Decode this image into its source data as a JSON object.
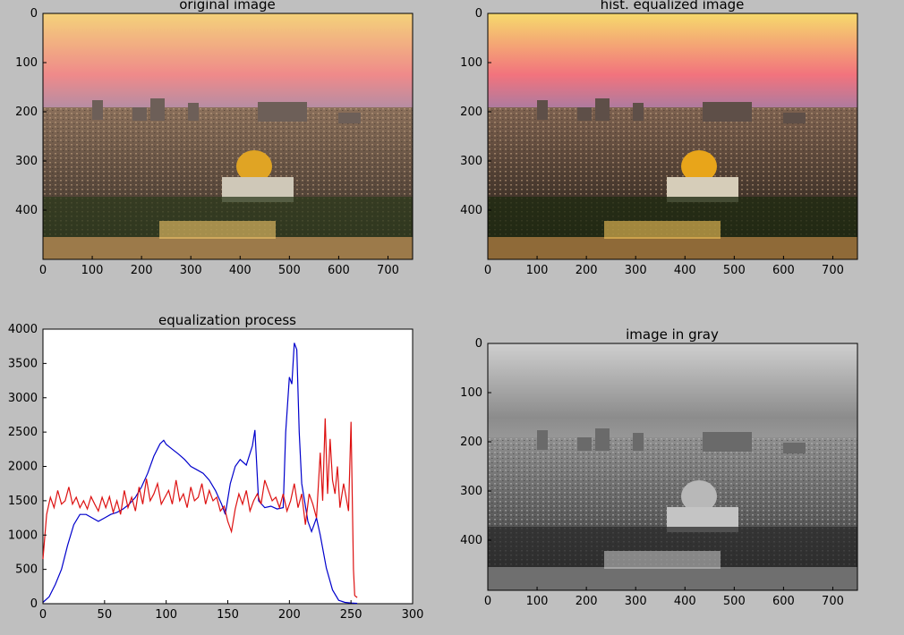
{
  "figure": {
    "background": "#bfbfbf",
    "colors": {
      "blue": "#0000cc",
      "red": "#dd1111",
      "axes": "#000000"
    }
  },
  "panels": {
    "original": {
      "title": "original image",
      "image_description": "Jerusalem skyline at dusk with the golden Dome of the Rock, colorful sunset sky",
      "x_ticks": [
        "0",
        "100",
        "200",
        "300",
        "400",
        "500",
        "600",
        "700"
      ],
      "y_ticks": [
        "0",
        "100",
        "200",
        "300",
        "400"
      ]
    },
    "equalized": {
      "title": "hist. equalized image",
      "image_description": "same scene after histogram equalization, higher contrast",
      "x_ticks": [
        "0",
        "100",
        "200",
        "300",
        "400",
        "500",
        "600",
        "700"
      ],
      "y_ticks": [
        "0",
        "100",
        "200",
        "300",
        "400"
      ]
    },
    "gray": {
      "title": "image in gray",
      "image_description": "grayscale version of the Jerusalem skyline",
      "x_ticks": [
        "0",
        "100",
        "200",
        "300",
        "400",
        "500",
        "600",
        "700"
      ],
      "y_ticks": [
        "0",
        "100",
        "200",
        "300",
        "400"
      ]
    }
  },
  "chart_data": {
    "type": "line",
    "title": "equalization process",
    "xlim": [
      0,
      300
    ],
    "ylim": [
      0,
      4000
    ],
    "x_ticks": [
      0,
      50,
      100,
      150,
      200,
      250,
      300
    ],
    "y_ticks": [
      0,
      500,
      1000,
      1500,
      2000,
      2500,
      3000,
      3500,
      4000
    ],
    "grid": false,
    "series": [
      {
        "color": "#0000cc",
        "points": [
          [
            0,
            20
          ],
          [
            5,
            100
          ],
          [
            10,
            280
          ],
          [
            15,
            500
          ],
          [
            20,
            850
          ],
          [
            25,
            1150
          ],
          [
            30,
            1300
          ],
          [
            35,
            1300
          ],
          [
            40,
            1250
          ],
          [
            45,
            1200
          ],
          [
            50,
            1250
          ],
          [
            55,
            1300
          ],
          [
            60,
            1330
          ],
          [
            65,
            1380
          ],
          [
            70,
            1450
          ],
          [
            75,
            1550
          ],
          [
            80,
            1700
          ],
          [
            85,
            1900
          ],
          [
            90,
            2150
          ],
          [
            95,
            2330
          ],
          [
            98,
            2380
          ],
          [
            100,
            2320
          ],
          [
            105,
            2250
          ],
          [
            110,
            2180
          ],
          [
            115,
            2100
          ],
          [
            120,
            2000
          ],
          [
            125,
            1950
          ],
          [
            130,
            1900
          ],
          [
            135,
            1800
          ],
          [
            140,
            1650
          ],
          [
            145,
            1450
          ],
          [
            148,
            1300
          ],
          [
            152,
            1750
          ],
          [
            156,
            2000
          ],
          [
            160,
            2100
          ],
          [
            165,
            2020
          ],
          [
            170,
            2300
          ],
          [
            172,
            2530
          ],
          [
            175,
            1500
          ],
          [
            180,
            1400
          ],
          [
            185,
            1420
          ],
          [
            190,
            1380
          ],
          [
            195,
            1400
          ],
          [
            197,
            2500
          ],
          [
            200,
            3300
          ],
          [
            202,
            3200
          ],
          [
            204,
            3800
          ],
          [
            206,
            3700
          ],
          [
            208,
            2500
          ],
          [
            210,
            1750
          ],
          [
            215,
            1200
          ],
          [
            218,
            1050
          ],
          [
            222,
            1250
          ],
          [
            225,
            1000
          ],
          [
            230,
            520
          ],
          [
            235,
            200
          ],
          [
            240,
            50
          ],
          [
            245,
            20
          ],
          [
            250,
            10
          ],
          [
            255,
            5
          ]
        ]
      },
      {
        "color": "#dd1111",
        "points": [
          [
            0,
            650
          ],
          [
            3,
            1300
          ],
          [
            6,
            1550
          ],
          [
            9,
            1400
          ],
          [
            12,
            1650
          ],
          [
            15,
            1450
          ],
          [
            18,
            1500
          ],
          [
            21,
            1700
          ],
          [
            24,
            1450
          ],
          [
            27,
            1550
          ],
          [
            30,
            1400
          ],
          [
            33,
            1500
          ],
          [
            36,
            1380
          ],
          [
            39,
            1560
          ],
          [
            42,
            1450
          ],
          [
            45,
            1350
          ],
          [
            48,
            1550
          ],
          [
            51,
            1400
          ],
          [
            54,
            1560
          ],
          [
            57,
            1330
          ],
          [
            60,
            1500
          ],
          [
            63,
            1300
          ],
          [
            66,
            1650
          ],
          [
            69,
            1400
          ],
          [
            72,
            1550
          ],
          [
            75,
            1350
          ],
          [
            78,
            1700
          ],
          [
            81,
            1450
          ],
          [
            84,
            1820
          ],
          [
            87,
            1500
          ],
          [
            90,
            1600
          ],
          [
            93,
            1750
          ],
          [
            96,
            1450
          ],
          [
            99,
            1550
          ],
          [
            102,
            1650
          ],
          [
            105,
            1450
          ],
          [
            108,
            1800
          ],
          [
            111,
            1500
          ],
          [
            114,
            1600
          ],
          [
            117,
            1400
          ],
          [
            120,
            1700
          ],
          [
            123,
            1500
          ],
          [
            126,
            1550
          ],
          [
            129,
            1750
          ],
          [
            132,
            1450
          ],
          [
            135,
            1650
          ],
          [
            138,
            1500
          ],
          [
            141,
            1550
          ],
          [
            144,
            1350
          ],
          [
            147,
            1420
          ],
          [
            150,
            1200
          ],
          [
            153,
            1050
          ],
          [
            156,
            1380
          ],
          [
            159,
            1600
          ],
          [
            162,
            1450
          ],
          [
            165,
            1650
          ],
          [
            168,
            1350
          ],
          [
            171,
            1500
          ],
          [
            174,
            1600
          ],
          [
            177,
            1450
          ],
          [
            180,
            1800
          ],
          [
            183,
            1650
          ],
          [
            186,
            1500
          ],
          [
            189,
            1550
          ],
          [
            192,
            1400
          ],
          [
            195,
            1600
          ],
          [
            198,
            1350
          ],
          [
            201,
            1500
          ],
          [
            204,
            1750
          ],
          [
            207,
            1400
          ],
          [
            210,
            1600
          ],
          [
            213,
            1150
          ],
          [
            216,
            1600
          ],
          [
            219,
            1450
          ],
          [
            222,
            1250
          ],
          [
            225,
            2200
          ],
          [
            227,
            1500
          ],
          [
            229,
            2700
          ],
          [
            231,
            1600
          ],
          [
            233,
            2400
          ],
          [
            235,
            1800
          ],
          [
            237,
            1600
          ],
          [
            239,
            2000
          ],
          [
            241,
            1400
          ],
          [
            244,
            1750
          ],
          [
            246,
            1550
          ],
          [
            248,
            1350
          ],
          [
            250,
            2650
          ],
          [
            252,
            500
          ],
          [
            253,
            120
          ],
          [
            255,
            90
          ]
        ]
      }
    ]
  }
}
